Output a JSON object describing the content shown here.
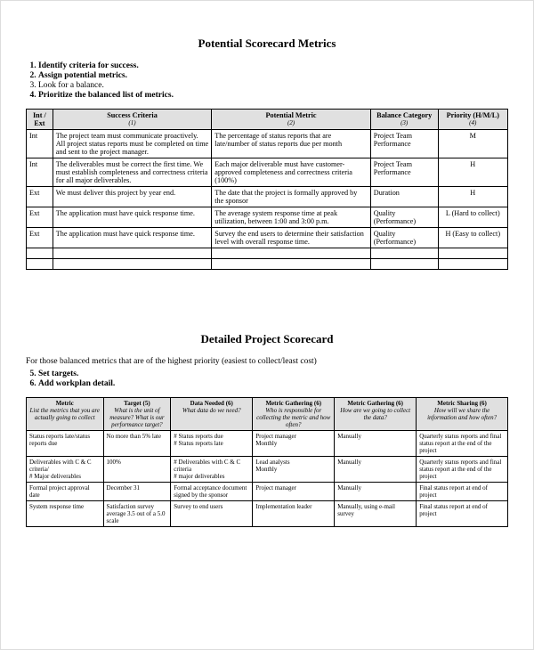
{
  "section1": {
    "title": "Potential Scorecard Metrics",
    "steps": [
      {
        "text": "Identify criteria for success.",
        "bold": true
      },
      {
        "text": "Assign potential metrics.",
        "bold": true
      },
      {
        "text": "Look for a balance.",
        "bold": false
      },
      {
        "text": "Prioritize the balanced list of metrics.",
        "bold": true
      }
    ],
    "table": {
      "columns": [
        {
          "label": "Int / Ext",
          "sub": ""
        },
        {
          "label": "Success Criteria",
          "sub": "(1)"
        },
        {
          "label": "Potential Metric",
          "sub": "(2)"
        },
        {
          "label": "Balance Category",
          "sub": "(3)"
        },
        {
          "label": "Priority (H/M/L)",
          "sub": "(4)"
        }
      ],
      "rows": [
        [
          "Int",
          "The project team must communicate proactively. All project status reports must be completed on time and sent to the project manager.",
          "The percentage of status reports that are late/number of status reports due per month",
          "Project Team Performance",
          "M"
        ],
        [
          "Int",
          "The deliverables must be correct the first time. We must establish completeness and correctness criteria for all major deliverables.",
          "Each major deliverable must have customer-approved completeness and correctness criteria (100%)",
          "Project Team Performance",
          "H"
        ],
        [
          "Ext",
          "We must deliver this project by year end.",
          "The date that the project is formally approved by the sponsor",
          "Duration",
          "H"
        ],
        [
          "Ext",
          "The application must have quick response time.",
          "The average system response time at peak utilization, between 1:00 and 3:00 p.m.",
          "Quality (Performance)",
          "L (Hard to collect)"
        ],
        [
          "Ext",
          "The application must have quick response time.",
          "Survey the end users to determine their satisfaction level with overall response time.",
          "Quality (Performance)",
          "H (Easy to collect)"
        ],
        [
          "",
          "",
          "",
          "",
          ""
        ],
        [
          "",
          "",
          "",
          "",
          ""
        ]
      ]
    }
  },
  "section2": {
    "title": "Detailed Project Scorecard",
    "intro": "For those balanced metrics that are of the highest priority (easiest to collect/least cost)",
    "steps": [
      {
        "n": 5,
        "text": "Set targets.",
        "bold": true
      },
      {
        "n": 6,
        "text": "Add workplan detail.",
        "bold": true
      }
    ],
    "table": {
      "columns": [
        {
          "label": "Metric",
          "sub": "List the metrics that you are actually going to collect"
        },
        {
          "label": "Target (5)",
          "sub": "What is the unit of measure? What is our performance target?"
        },
        {
          "label": "Data Needed (6)",
          "sub": "What data do we need?"
        },
        {
          "label": "Metric Gathering (6)",
          "sub": "Who is responsible for collecting the metric and how often?"
        },
        {
          "label": "Metric Gathering (6)",
          "sub": "How are we going to collect the data?"
        },
        {
          "label": "Metric Sharing (6)",
          "sub": "How will we share the information and how often?"
        }
      ],
      "rows": [
        [
          "Status reports late/status reports due",
          "No more than 5% late",
          "# Status reports due\n# Status reports late",
          "Project manager\nMonthly",
          "Manually",
          "Quarterly status reports and final status report at the end of the project"
        ],
        [
          "Deliverables with C & C criteria/\n# Major deliverables",
          "100%",
          "# Deliverables with C & C criteria\n# major deliverables",
          "Lead analysts\nMonthly",
          "Manually",
          "Quarterly status reports and final status report at the end of the project"
        ],
        [
          "Formal project approval date",
          "December 31",
          "Formal acceptance document signed by the sponsor",
          "Project manager",
          "Manually",
          "Final status report at end of project"
        ],
        [
          "System response time",
          "Satisfaction survey average 3.5 out of a 5.0 scale",
          "Survey to end users",
          "Implementation leader",
          "Manually, using e-mail survey",
          "Final status report at end of project"
        ]
      ]
    }
  },
  "colors": {
    "header_bg": "#e0e0e0",
    "border": "#000000",
    "page_border": "#dddddd",
    "background": "#ffffff",
    "text": "#000000"
  }
}
